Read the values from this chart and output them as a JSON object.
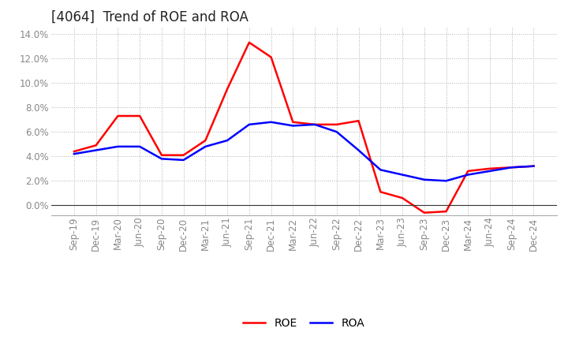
{
  "title": "[4064]  Trend of ROE and ROA",
  "x_labels": [
    "Sep-19",
    "Dec-19",
    "Mar-20",
    "Jun-20",
    "Sep-20",
    "Dec-20",
    "Mar-21",
    "Jun-21",
    "Sep-21",
    "Dec-21",
    "Mar-22",
    "Jun-22",
    "Sep-22",
    "Dec-22",
    "Mar-23",
    "Jun-23",
    "Sep-23",
    "Dec-23",
    "Mar-24",
    "Jun-24",
    "Sep-24",
    "Dec-24"
  ],
  "roe": [
    4.4,
    4.9,
    7.3,
    7.3,
    4.1,
    4.1,
    5.3,
    9.5,
    13.3,
    12.1,
    6.8,
    6.6,
    6.6,
    6.9,
    1.1,
    0.6,
    -0.6,
    -0.5,
    2.8,
    3.0,
    3.1,
    3.2
  ],
  "roa": [
    4.2,
    4.5,
    4.8,
    4.8,
    3.8,
    3.7,
    4.8,
    5.3,
    6.6,
    6.8,
    6.5,
    6.6,
    6.0,
    4.5,
    2.9,
    2.5,
    2.1,
    2.0,
    2.5,
    2.8,
    3.1,
    3.2
  ],
  "roe_color": "#FF0000",
  "roa_color": "#0000FF",
  "ylim": [
    -0.8,
    14.5
  ],
  "yticks": [
    0.0,
    2.0,
    4.0,
    6.0,
    8.0,
    10.0,
    12.0,
    14.0
  ],
  "background_color": "#ffffff",
  "grid_color": "#b0b0b0",
  "title_fontsize": 12,
  "axis_fontsize": 8.5,
  "legend_fontsize": 10,
  "tick_color": "#888888"
}
